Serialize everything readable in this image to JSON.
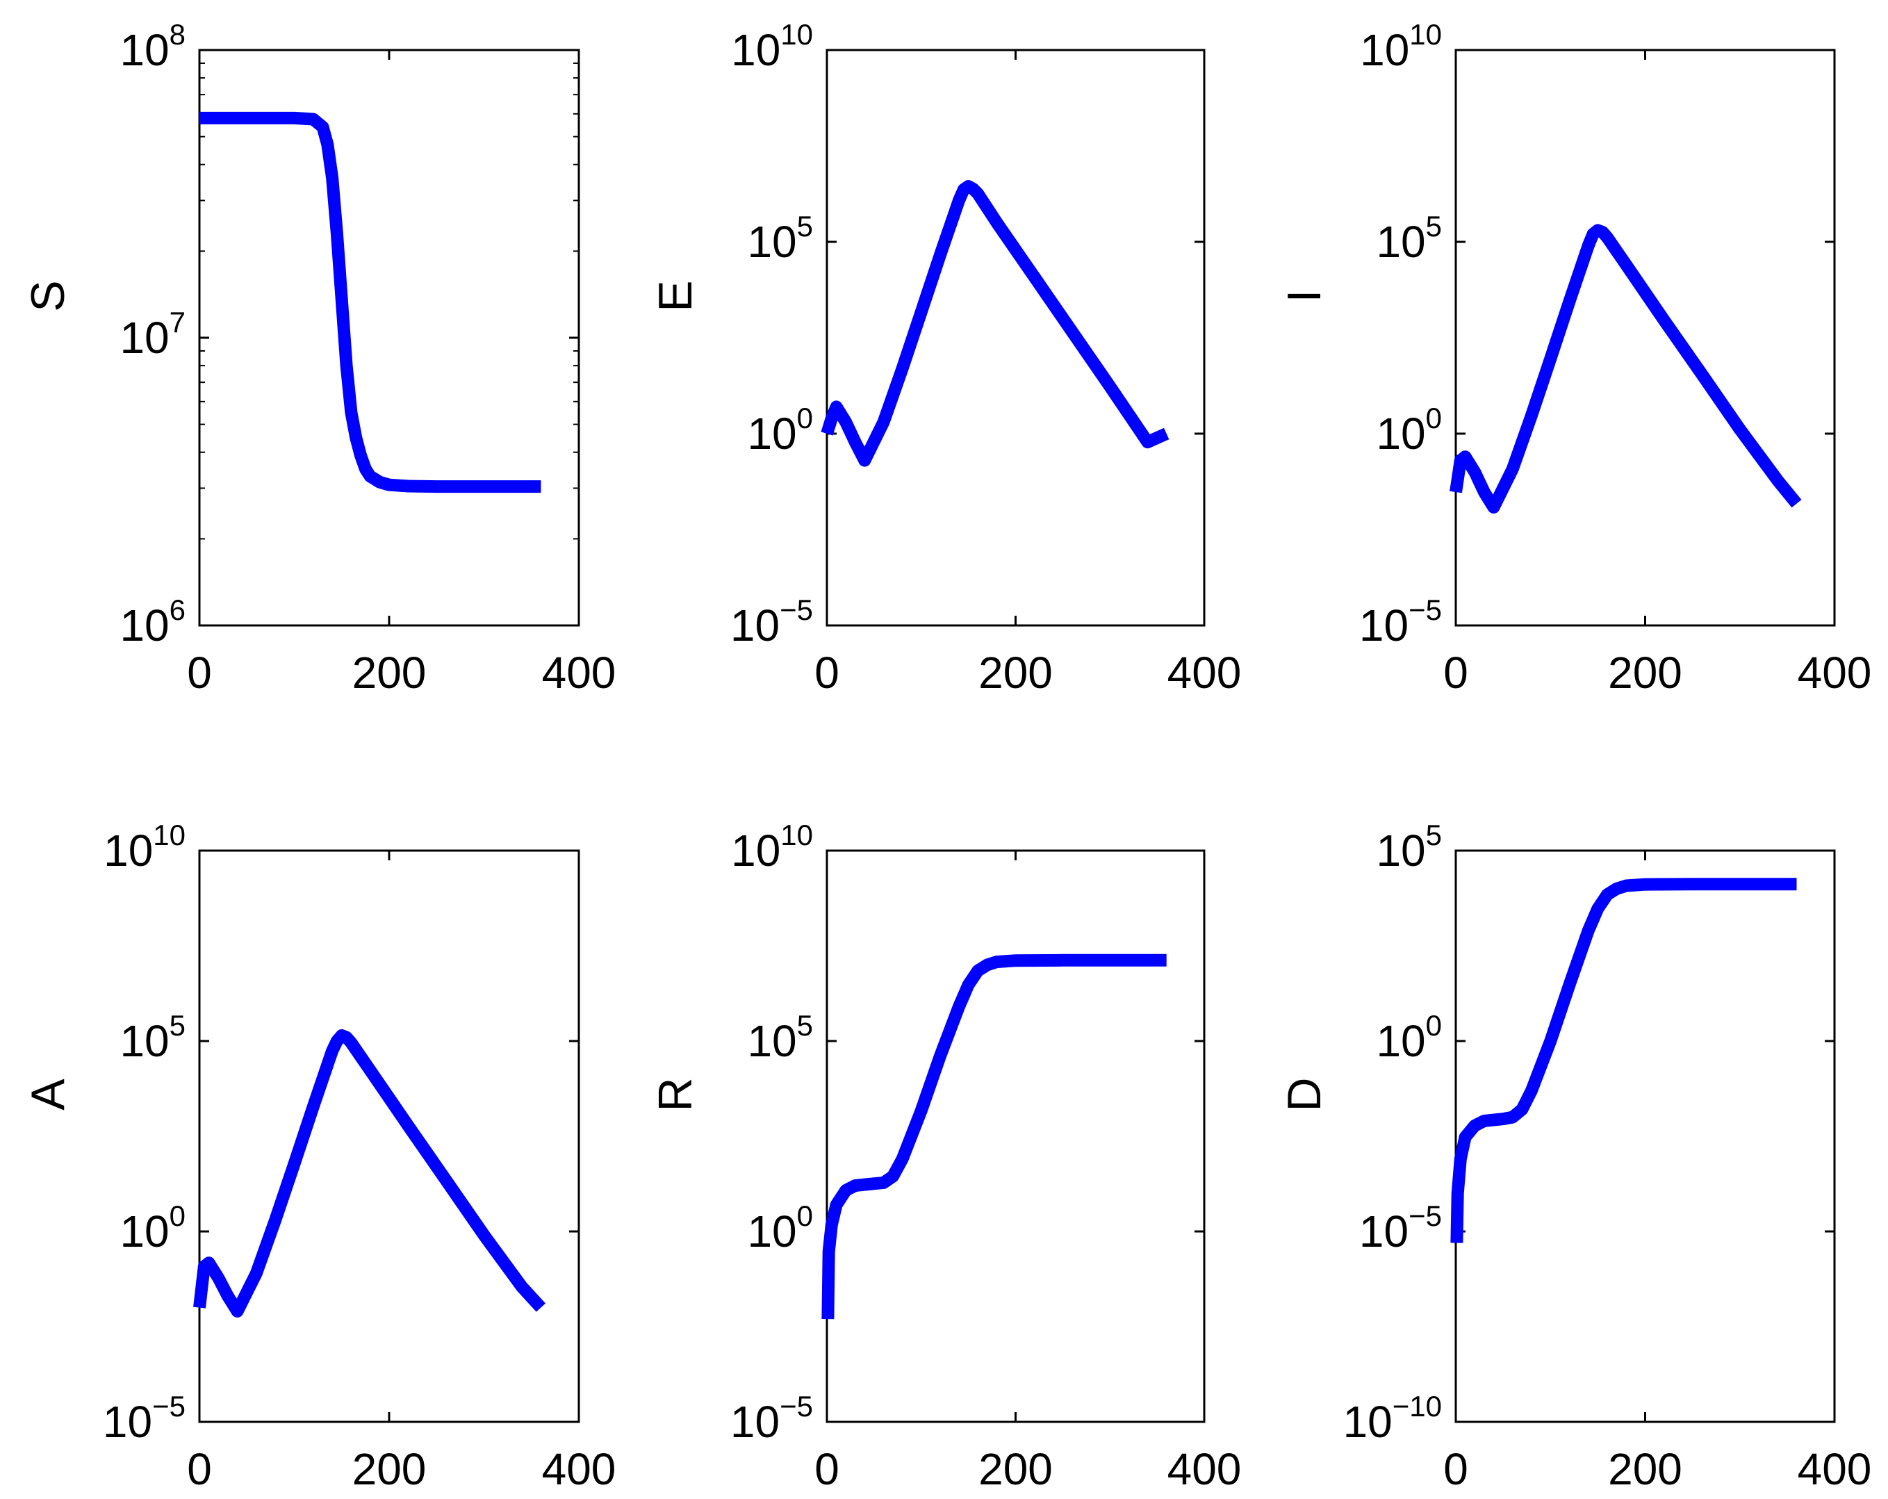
{
  "figure": {
    "layout": "2x3 grid of line plots, semilog (log y)",
    "series_color": "#0000ff",
    "axes_color": "#000000",
    "grid": false,
    "legend": false
  },
  "chart_data": [
    {
      "type": "line",
      "title": "",
      "xlabel": "",
      "ylabel": "S",
      "xlim": [
        0,
        400
      ],
      "ylim": [
        1000000.0,
        100000000.0
      ],
      "yscale": "log",
      "x_ticks": [
        0,
        200,
        400
      ],
      "y_ticks_exp": [
        6,
        7,
        8
      ],
      "series": [
        {
          "x": [
            0,
            50,
            100,
            120,
            130,
            135,
            140,
            145,
            150,
            155,
            160,
            165,
            170,
            175,
            180,
            190,
            200,
            220,
            250,
            300,
            360
          ],
          "y": [
            58000000.0,
            58000000.0,
            58000000.0,
            57500000.0,
            54000000.0,
            47000000.0,
            36000000.0,
            23000000.0,
            13500000.0,
            8000000.0,
            5500000.0,
            4500000.0,
            3900000.0,
            3500000.0,
            3300000.0,
            3150000.0,
            3080000.0,
            3050000.0,
            3040000.0,
            3040000.0,
            3040000.0
          ]
        }
      ]
    },
    {
      "type": "line",
      "title": "",
      "xlabel": "",
      "ylabel": "E",
      "xlim": [
        0,
        400
      ],
      "ylim": [
        1e-05,
        10000000000.0
      ],
      "yscale": "log",
      "x_ticks": [
        0,
        200,
        400
      ],
      "y_ticks_exp": [
        -5,
        0,
        5,
        10
      ],
      "series": [
        {
          "x": [
            0,
            5,
            10,
            20,
            30,
            40,
            60,
            80,
            100,
            120,
            140,
            145,
            150,
            155,
            160,
            180,
            220,
            260,
            300,
            340,
            360
          ],
          "y": [
            1.0,
            2.5,
            5.0,
            2.0,
            0.6,
            0.2,
            2.0,
            50,
            1500.0,
            45000.0,
            1200000.0,
            2300000.0,
            2800000.0,
            2400000.0,
            1800000.0,
            320000.0,
            12000.0,
            450.0,
            17.0,
            0.6,
            1.0
          ]
        }
      ]
    },
    {
      "type": "line",
      "title": "",
      "xlabel": "",
      "ylabel": "I",
      "xlim": [
        0,
        400
      ],
      "ylim": [
        1e-05,
        10000000000.0
      ],
      "yscale": "log",
      "x_ticks": [
        0,
        200,
        400
      ],
      "y_ticks_exp": [
        -5,
        0,
        5,
        10
      ],
      "series": [
        {
          "x": [
            0,
            5,
            10,
            20,
            30,
            40,
            60,
            80,
            100,
            120,
            140,
            145,
            150,
            155,
            160,
            180,
            220,
            260,
            300,
            340,
            360
          ],
          "y": [
            0.03,
            0.2,
            0.25,
            0.1,
            0.03,
            0.012,
            0.12,
            3.0,
            90,
            2800.0,
            80000.0,
            160000.0,
            200000.0,
            180000.0,
            130000.0,
            25000.0,
            900.0,
            35,
            1.3,
            0.06,
            0.015
          ]
        }
      ]
    },
    {
      "type": "line",
      "title": "",
      "xlabel": "",
      "ylabel": "A",
      "xlim": [
        0,
        400
      ],
      "ylim": [
        1e-05,
        10000000000.0
      ],
      "yscale": "log",
      "x_ticks": [
        0,
        200,
        400
      ],
      "y_ticks_exp": [
        -5,
        0,
        5,
        10
      ],
      "series": [
        {
          "x": [
            0,
            5,
            10,
            20,
            30,
            40,
            60,
            80,
            100,
            120,
            140,
            145,
            150,
            155,
            160,
            180,
            220,
            260,
            300,
            340,
            360
          ],
          "y": [
            0.01,
            0.12,
            0.15,
            0.06,
            0.02,
            0.008,
            0.08,
            2.0,
            60,
            1900.0,
            55000.0,
            100000.0,
            140000.0,
            125000.0,
            90000.0,
            17000.0,
            600.0,
            22,
            0.8,
            0.035,
            0.01
          ]
        }
      ]
    },
    {
      "type": "line",
      "title": "",
      "xlabel": "",
      "ylabel": "R",
      "xlim": [
        0,
        400
      ],
      "ylim": [
        1e-05,
        10000000000.0
      ],
      "yscale": "log",
      "x_ticks": [
        0,
        200,
        400
      ],
      "y_ticks_exp": [
        -5,
        0,
        5,
        10
      ],
      "series": [
        {
          "x": [
            1,
            2,
            5,
            10,
            20,
            30,
            50,
            60,
            70,
            80,
            100,
            120,
            140,
            150,
            160,
            170,
            180,
            200,
            250,
            300,
            360
          ],
          "y": [
            0.005,
            0.3,
            1.5,
            5.0,
            12,
            16,
            18,
            19,
            28,
            80,
            1500.0,
            40000.0,
            800000.0,
            3000000.0,
            7000000.0,
            10000000.0,
            12000000.0,
            13000000.0,
            13200000.0,
            13200000.0,
            13200000.0
          ]
        }
      ]
    },
    {
      "type": "line",
      "title": "",
      "xlabel": "",
      "ylabel": "D",
      "xlim": [
        0,
        400
      ],
      "ylim": [
        1e-10,
        100000.0
      ],
      "yscale": "log",
      "x_ticks": [
        0,
        200,
        400
      ],
      "y_ticks_exp": [
        -10,
        -5,
        0,
        5
      ],
      "series": [
        {
          "x": [
            1,
            2,
            5,
            10,
            20,
            30,
            50,
            60,
            70,
            80,
            100,
            120,
            140,
            150,
            160,
            170,
            180,
            200,
            250,
            300,
            360
          ],
          "y": [
            5e-06,
            0.0001,
            0.0008,
            0.003,
            0.006,
            0.008,
            0.009,
            0.01,
            0.016,
            0.05,
            1.0,
            30,
            800,
            3000.0,
            7000.0,
            10000.0,
            12000.0,
            13000.0,
            13200.0,
            13200.0,
            13200.0
          ]
        }
      ]
    }
  ]
}
